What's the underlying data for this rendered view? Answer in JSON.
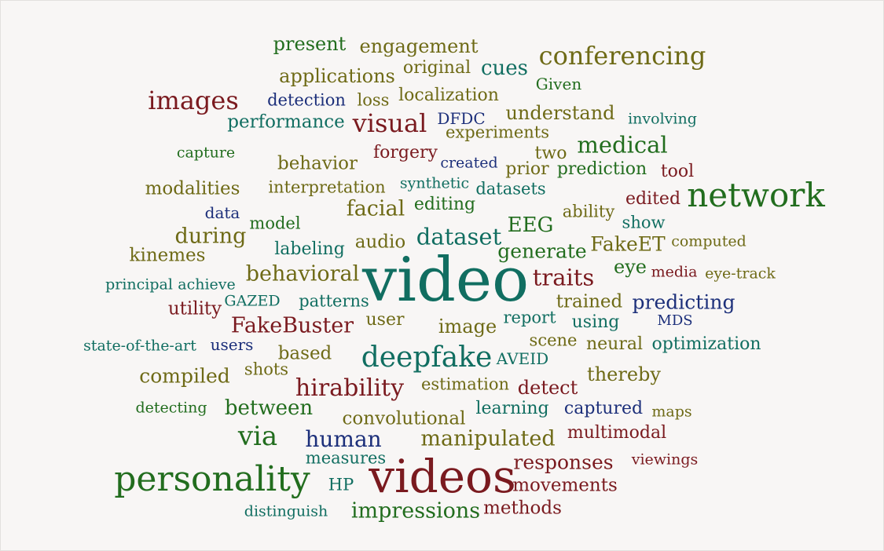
{
  "palette": {
    "dark_red": "#7a1a1f",
    "olive": "#6e6a16",
    "green": "#226d1e",
    "teal": "#116e61",
    "navy": "#1c2f7a"
  },
  "words": [
    {
      "text": "video",
      "color": "#116e61"
    },
    {
      "text": "videos",
      "color": "#7a1a1f"
    },
    {
      "text": "personality",
      "color": "#226d1e"
    },
    {
      "text": "network",
      "color": "#226d1e"
    },
    {
      "text": "deepfake",
      "color": "#116e61"
    },
    {
      "text": "conferencing",
      "color": "#6e6a16"
    },
    {
      "text": "images",
      "color": "#7a1a1f"
    },
    {
      "text": "visual",
      "color": "#7a1a1f"
    },
    {
      "text": "hirability",
      "color": "#7a1a1f"
    },
    {
      "text": "via",
      "color": "#226d1e"
    },
    {
      "text": "human",
      "color": "#1c2f7a"
    },
    {
      "text": "manipulated",
      "color": "#6e6a16"
    },
    {
      "text": "impressions",
      "color": "#226d1e"
    },
    {
      "text": "medical",
      "color": "#226d1e"
    },
    {
      "text": "dataset",
      "color": "#116e61"
    },
    {
      "text": "traits",
      "color": "#7a1a1f"
    },
    {
      "text": "behavioral",
      "color": "#6e6a16"
    },
    {
      "text": "FakeBuster",
      "color": "#7a1a1f"
    },
    {
      "text": "predicting",
      "color": "#1c2f7a"
    },
    {
      "text": "facial",
      "color": "#6e6a16"
    },
    {
      "text": "during",
      "color": "#6e6a16"
    },
    {
      "text": "EEG",
      "color": "#226d1e"
    },
    {
      "text": "FakeET",
      "color": "#6e6a16"
    },
    {
      "text": "generate",
      "color": "#226d1e"
    },
    {
      "text": "between",
      "color": "#226d1e"
    },
    {
      "text": "compiled",
      "color": "#6e6a16"
    },
    {
      "text": "cues",
      "color": "#116e61"
    },
    {
      "text": "present",
      "color": "#226d1e"
    },
    {
      "text": "engagement",
      "color": "#6e6a16"
    },
    {
      "text": "applications",
      "color": "#6e6a16"
    },
    {
      "text": "performance",
      "color": "#116e61"
    },
    {
      "text": "understand",
      "color": "#6e6a16"
    },
    {
      "text": "responses",
      "color": "#7a1a1f"
    },
    {
      "text": "movements",
      "color": "#7a1a1f"
    },
    {
      "text": "methods",
      "color": "#7a1a1f"
    },
    {
      "text": "image",
      "color": "#6e6a16"
    },
    {
      "text": "eye",
      "color": "#226d1e"
    },
    {
      "text": "convolutional",
      "color": "#6e6a16"
    },
    {
      "text": "detect",
      "color": "#7a1a1f"
    },
    {
      "text": "thereby",
      "color": "#6e6a16"
    },
    {
      "text": "trained",
      "color": "#6e6a16"
    },
    {
      "text": "multimodal",
      "color": "#7a1a1f"
    },
    {
      "text": "behavior",
      "color": "#6e6a16"
    },
    {
      "text": "modalities",
      "color": "#6e6a16"
    },
    {
      "text": "kinemes",
      "color": "#6e6a16"
    },
    {
      "text": "audio",
      "color": "#6e6a16"
    },
    {
      "text": "based",
      "color": "#6e6a16"
    },
    {
      "text": "forgery",
      "color": "#7a1a1f"
    },
    {
      "text": "localization",
      "color": "#6e6a16"
    },
    {
      "text": "original",
      "color": "#6e6a16"
    },
    {
      "text": "detection",
      "color": "#1c2f7a"
    },
    {
      "text": "loss",
      "color": "#6e6a16"
    },
    {
      "text": "Given",
      "color": "#226d1e"
    },
    {
      "text": "DFDC",
      "color": "#1c2f7a"
    },
    {
      "text": "experiments",
      "color": "#6e6a16"
    },
    {
      "text": "involving",
      "color": "#116e61"
    },
    {
      "text": "capture",
      "color": "#226d1e"
    },
    {
      "text": "two",
      "color": "#6e6a16"
    },
    {
      "text": "created",
      "color": "#1c2f7a"
    },
    {
      "text": "prior",
      "color": "#6e6a16"
    },
    {
      "text": "prediction",
      "color": "#226d1e"
    },
    {
      "text": "tool",
      "color": "#7a1a1f"
    },
    {
      "text": "interpretation",
      "color": "#6e6a16"
    },
    {
      "text": "synthetic",
      "color": "#116e61"
    },
    {
      "text": "datasets",
      "color": "#116e61"
    },
    {
      "text": "edited",
      "color": "#7a1a1f"
    },
    {
      "text": "data",
      "color": "#1c2f7a"
    },
    {
      "text": "editing",
      "color": "#226d1e"
    },
    {
      "text": "ability",
      "color": "#6e6a16"
    },
    {
      "text": "model",
      "color": "#226d1e"
    },
    {
      "text": "show",
      "color": "#116e61"
    },
    {
      "text": "labeling",
      "color": "#116e61"
    },
    {
      "text": "computed",
      "color": "#6e6a16"
    },
    {
      "text": "principal",
      "color": "#116e61"
    },
    {
      "text": "achieve",
      "color": "#116e61"
    },
    {
      "text": "media",
      "color": "#7a1a1f"
    },
    {
      "text": "eye-track",
      "color": "#6e6a16"
    },
    {
      "text": "utility",
      "color": "#7a1a1f"
    },
    {
      "text": "GAZED",
      "color": "#116e61"
    },
    {
      "text": "patterns",
      "color": "#116e61"
    },
    {
      "text": "user",
      "color": "#6e6a16"
    },
    {
      "text": "report",
      "color": "#116e61"
    },
    {
      "text": "using",
      "color": "#116e61"
    },
    {
      "text": "MDS",
      "color": "#1c2f7a"
    },
    {
      "text": "state-of-the-art",
      "color": "#116e61"
    },
    {
      "text": "users",
      "color": "#1c2f7a"
    },
    {
      "text": "scene",
      "color": "#6e6a16"
    },
    {
      "text": "neural",
      "color": "#6e6a16"
    },
    {
      "text": "optimization",
      "color": "#116e61"
    },
    {
      "text": "shots",
      "color": "#6e6a16"
    },
    {
      "text": "AVEID",
      "color": "#116e61"
    },
    {
      "text": "estimation",
      "color": "#6e6a16"
    },
    {
      "text": "detecting",
      "color": "#226d1e"
    },
    {
      "text": "learning",
      "color": "#116e61"
    },
    {
      "text": "captured",
      "color": "#1c2f7a"
    },
    {
      "text": "maps",
      "color": "#6e6a16"
    },
    {
      "text": "measures",
      "color": "#116e61"
    },
    {
      "text": "viewings",
      "color": "#7a1a1f"
    },
    {
      "text": "HP",
      "color": "#116e61"
    },
    {
      "text": "distinguish",
      "color": "#116e61"
    }
  ]
}
